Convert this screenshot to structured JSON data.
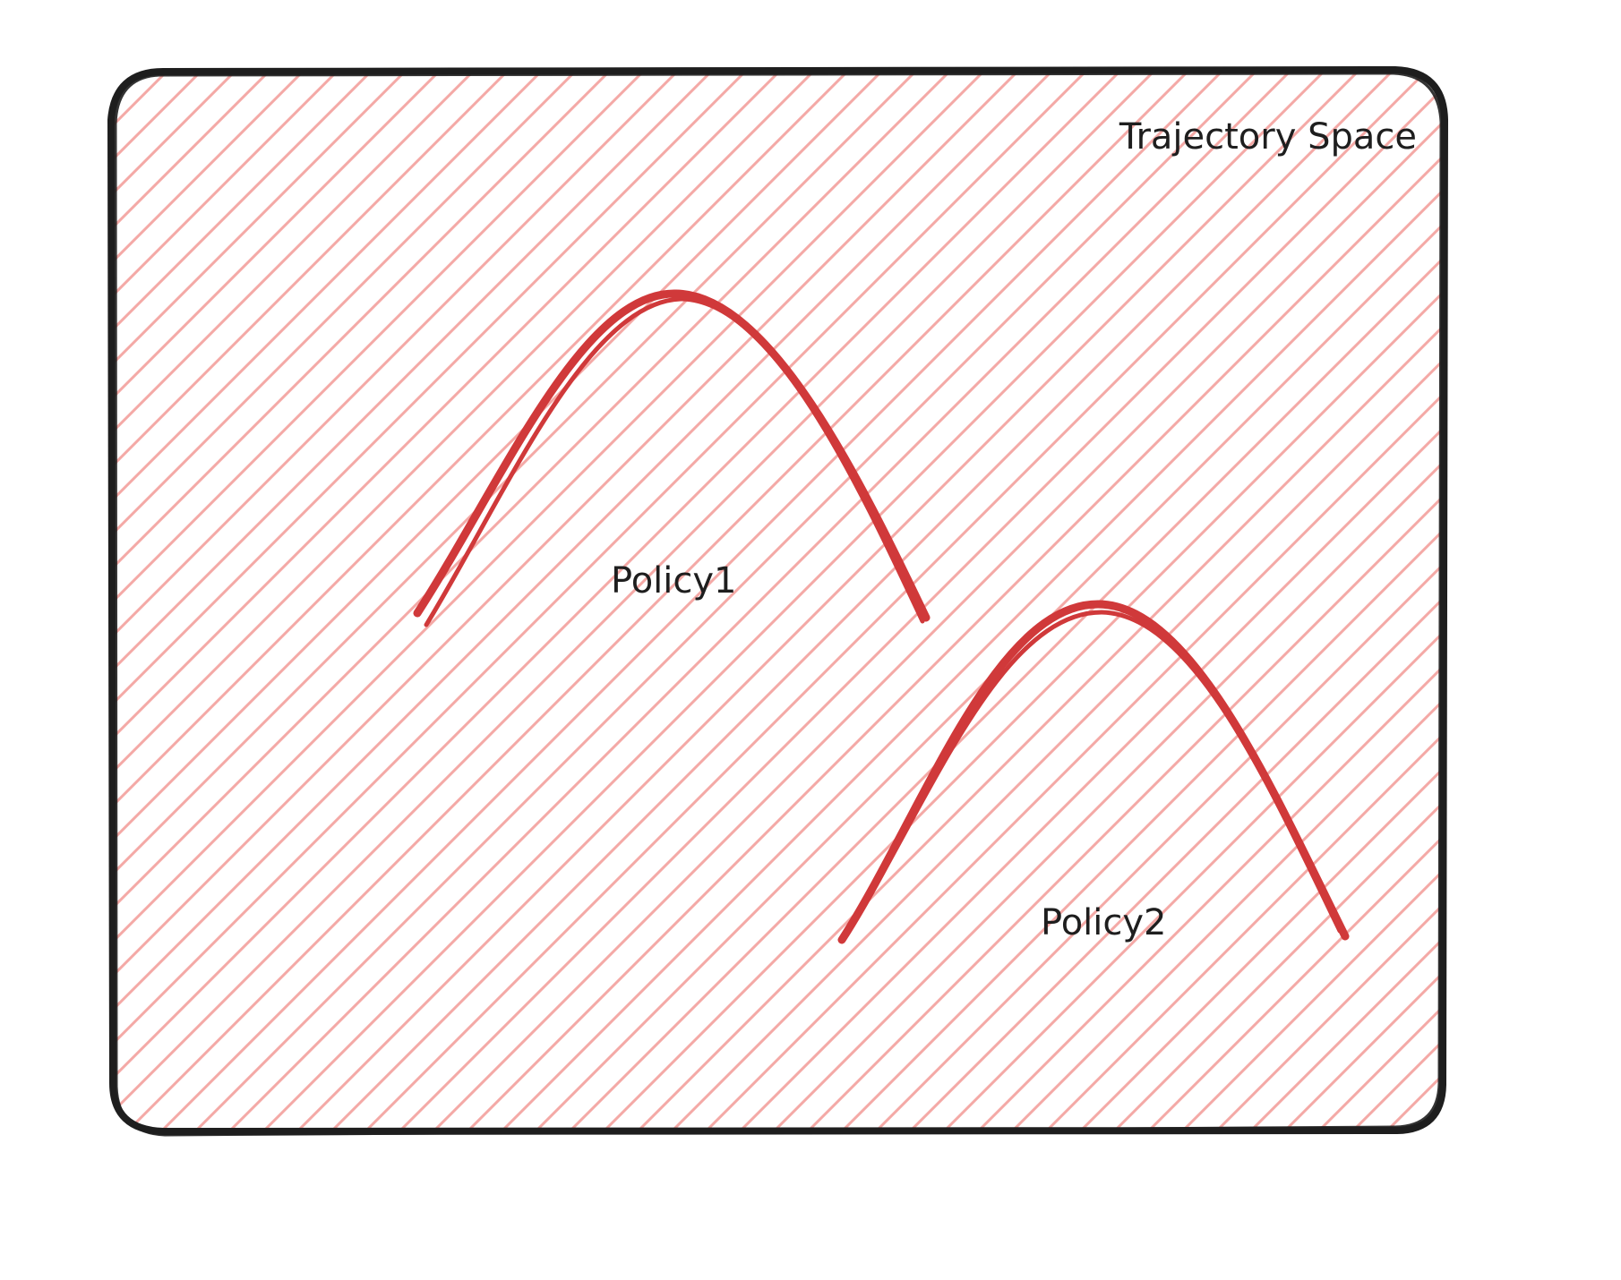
{
  "diagram": {
    "region": {
      "label": "Trajectory Space",
      "fill_hatch_color": "#f4a9a6",
      "border_color": "#1e1e1e"
    },
    "curves": [
      {
        "label": "Policy1",
        "stroke_color": "#d0393a"
      },
      {
        "label": "Policy2",
        "stroke_color": "#d0393a"
      }
    ]
  }
}
